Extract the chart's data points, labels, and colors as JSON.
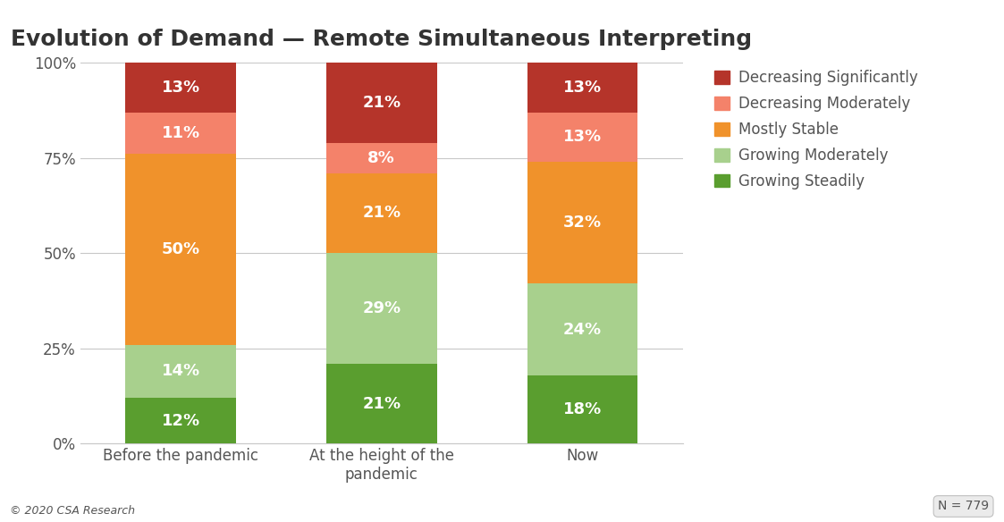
{
  "title": "Evolution of Demand — Remote Simultaneous Interpreting",
  "categories": [
    "Before the pandemic",
    "At the height of the\npandemic",
    "Now"
  ],
  "series": [
    {
      "label": "Growing Steadily",
      "color": "#5a9e2f",
      "values": [
        12,
        21,
        18
      ]
    },
    {
      "label": "Growing Moderately",
      "color": "#a8d08d",
      "values": [
        14,
        29,
        24
      ]
    },
    {
      "label": "Mostly Stable",
      "color": "#f0922b",
      "values": [
        50,
        21,
        32
      ]
    },
    {
      "label": "Decreasing Moderately",
      "color": "#f4826a",
      "values": [
        11,
        8,
        13
      ]
    },
    {
      "label": "Decreasing Significantly",
      "color": "#b5342a",
      "values": [
        13,
        21,
        13
      ]
    }
  ],
  "legend_order": [
    4,
    3,
    2,
    1,
    0
  ],
  "ylabel_ticks": [
    "0%",
    "25%",
    "50%",
    "75%",
    "100%"
  ],
  "yticks": [
    0,
    25,
    50,
    75,
    100
  ],
  "bar_width": 0.55,
  "background_color": "#ffffff",
  "text_color": "#ffffff",
  "label_color": "#555555",
  "title_color": "#333333",
  "footnote_left": "© 2020 CSA Research",
  "footnote_right": "N = 779",
  "grid_color": "#c8c8c8",
  "label_fontsize": 13,
  "tick_fontsize": 12,
  "title_fontsize": 18,
  "legend_fontsize": 12
}
